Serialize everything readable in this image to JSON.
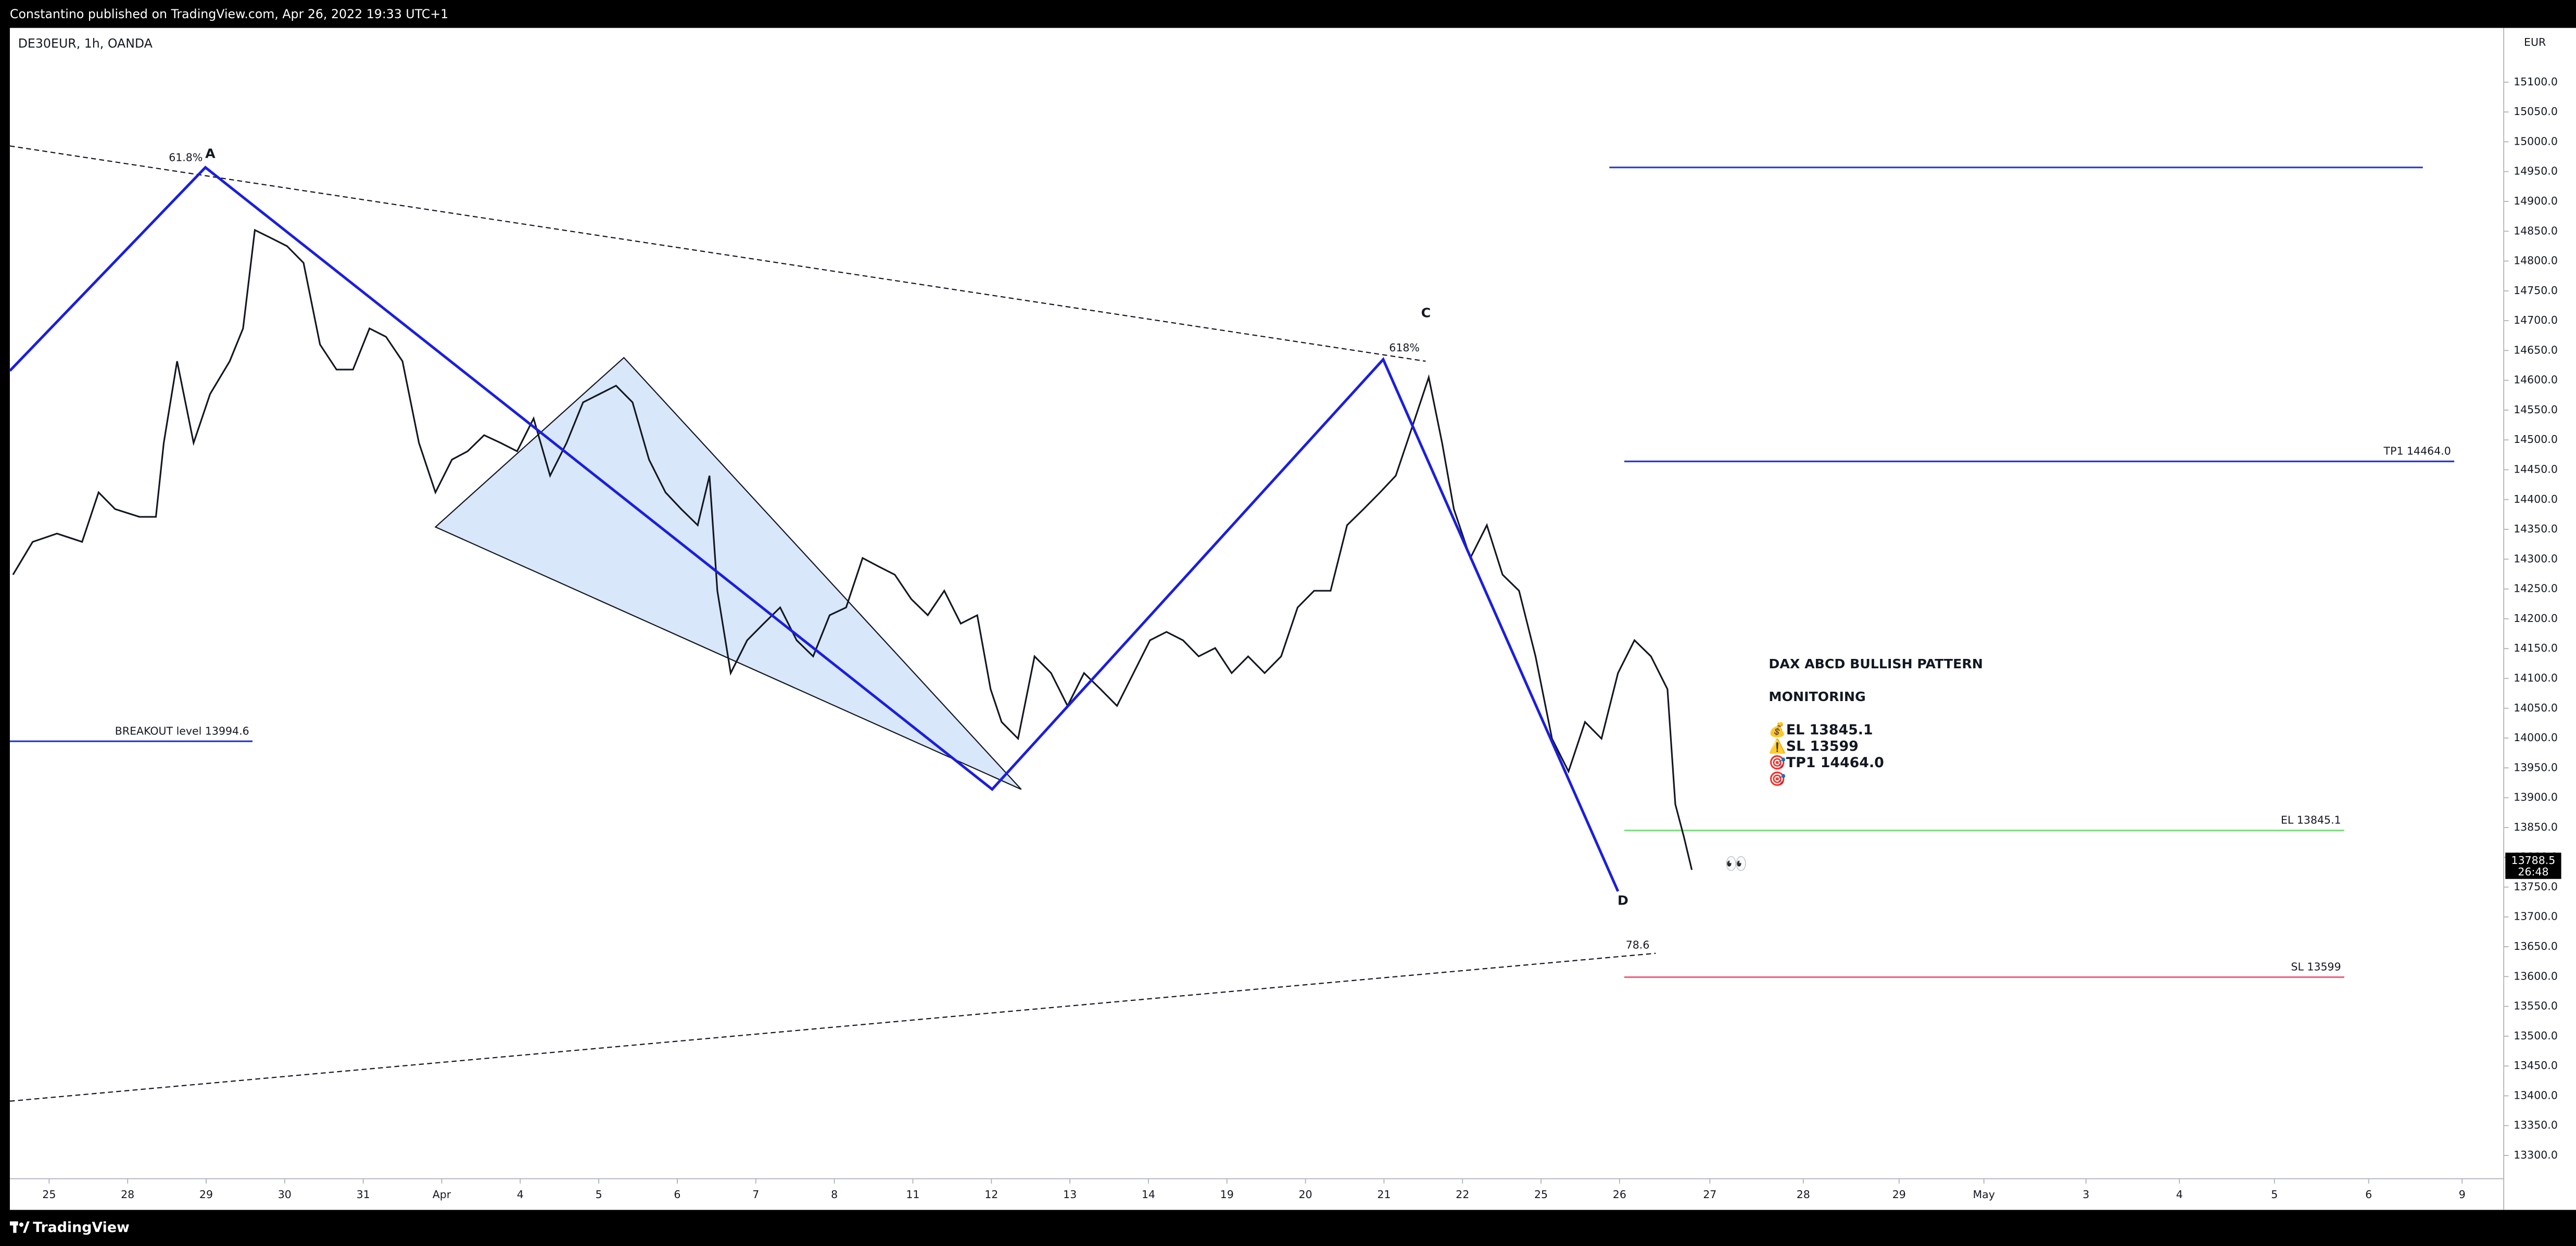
{
  "header": {
    "publisher": "Constantino published on TradingView.com, Apr 26, 2022 19:33 UTC+1",
    "symbol": "DE30EUR, 1h, OANDA",
    "currency": "EUR"
  },
  "footer": {
    "brand": "TradingView"
  },
  "chart_data": {
    "type": "line",
    "color": "#131722",
    "x": [
      -0.46,
      -0.21,
      0.1,
      0.42,
      0.63,
      0.84,
      1.15,
      1.36,
      1.46,
      1.63,
      1.84,
      2.05,
      2.3,
      2.47,
      2.62,
      2.82,
      3.03,
      3.24,
      3.45,
      3.66,
      3.87,
      4.08,
      4.29,
      4.5,
      4.71,
      4.92,
      5.13,
      5.33,
      5.54,
      5.75,
      5.96,
      6.17,
      6.38,
      6.59,
      6.8,
      7.01,
      7.22,
      7.43,
      7.64,
      7.85,
      8.05,
      8.26,
      8.41,
      8.51,
      8.68,
      8.89,
      9.1,
      9.31,
      9.52,
      9.73,
      9.94,
      10.15,
      10.36,
      10.56,
      10.77,
      10.98,
      11.19,
      11.4,
      11.61,
      11.82,
      11.99,
      12.13,
      12.34,
      12.55,
      12.76,
      12.97,
      13.18,
      13.39,
      13.6,
      13.81,
      14.02,
      14.23,
      14.44,
      14.64,
      14.85,
      15.06,
      15.27,
      15.48,
      15.69,
      15.9,
      16.11,
      16.32,
      16.53,
      16.74,
      16.95,
      17.15,
      17.36,
      17.57,
      17.74,
      17.89,
      18.1,
      18.31,
      18.51,
      18.72,
      18.93,
      19.14,
      19.35,
      19.56,
      19.77,
      19.98,
      20.19,
      20.4,
      20.61,
      20.71,
      20.82,
      20.92
    ],
    "values": [
      14274,
      14329,
      14343,
      14329,
      14412,
      14384,
      14371,
      14371,
      14495,
      14632,
      14495,
      14577,
      14632,
      14687,
      14852,
      14839,
      14825,
      14797,
      14660,
      14618,
      14618,
      14687,
      14673,
      14632,
      14495,
      14412,
      14467,
      14481,
      14508,
      14495,
      14481,
      14536,
      14440,
      14495,
      14563,
      14577,
      14591,
      14563,
      14467,
      14412,
      14384,
      14357,
      14440,
      14247,
      14109,
      14164,
      14192,
      14219,
      14164,
      14137,
      14206,
      14219,
      14302,
      14288,
      14274,
      14233,
      14206,
      14247,
      14192,
      14206,
      14082,
      14027,
      13999,
      14137,
      14109,
      14054,
      14109,
      14082,
      14054,
      14109,
      14164,
      14178,
      14164,
      14137,
      14151,
      14109,
      14137,
      14109,
      14137,
      14219,
      14247,
      14247,
      14357,
      14384,
      14412,
      14440,
      14522,
      14605,
      14495,
      14384,
      14302,
      14357,
      14274,
      14247,
      14137,
      13999,
      13944,
      14027,
      13999,
      14109,
      14164,
      14137,
      14082,
      13889,
      13834,
      13779
    ],
    "xlim": [
      -0.5,
      31.26
    ],
    "xticks": [
      {
        "value": 0,
        "label": "25"
      },
      {
        "value": 1,
        "label": "28"
      },
      {
        "value": 2,
        "label": "29"
      },
      {
        "value": 3,
        "label": "30"
      },
      {
        "value": 4,
        "label": "31"
      },
      {
        "value": 5,
        "label": "Apr"
      },
      {
        "value": 6,
        "label": "4"
      },
      {
        "value": 7,
        "label": "5"
      },
      {
        "value": 8,
        "label": "6"
      },
      {
        "value": 9,
        "label": "7"
      },
      {
        "value": 10,
        "label": "8"
      },
      {
        "value": 11,
        "label": "11"
      },
      {
        "value": 12,
        "label": "12"
      },
      {
        "value": 13,
        "label": "13"
      },
      {
        "value": 14,
        "label": "14"
      },
      {
        "value": 15,
        "label": "19"
      },
      {
        "value": 16,
        "label": "20"
      },
      {
        "value": 17,
        "label": "21"
      },
      {
        "value": 18,
        "label": "22"
      },
      {
        "value": 19,
        "label": "25"
      },
      {
        "value": 20,
        "label": "26"
      },
      {
        "value": 21.15,
        "label": "27"
      },
      {
        "value": 22.34,
        "label": "28"
      },
      {
        "value": 23.56,
        "label": "29"
      },
      {
        "value": 24.64,
        "label": "May"
      },
      {
        "value": 25.94,
        "label": "3"
      },
      {
        "value": 27.13,
        "label": "4"
      },
      {
        "value": 28.34,
        "label": "5"
      },
      {
        "value": 29.54,
        "label": "6"
      },
      {
        "value": 30.73,
        "label": "9"
      }
    ],
    "ylim": [
      13261,
      15191
    ],
    "yticks": [
      {
        "value": 13300,
        "label": "13300.0"
      },
      {
        "value": 13350,
        "label": "13350.0"
      },
      {
        "value": 13400,
        "label": "13400.0"
      },
      {
        "value": 13450,
        "label": "13450.0"
      },
      {
        "value": 13500,
        "label": "13500.0"
      },
      {
        "value": 13550,
        "label": "13550.0"
      },
      {
        "value": 13600,
        "label": "13600.0"
      },
      {
        "value": 13650,
        "label": "13650.0"
      },
      {
        "value": 13700,
        "label": "13700.0"
      },
      {
        "value": 13750,
        "label": "13750.0"
      },
      {
        "value": 13800,
        "label": "13800.0"
      },
      {
        "value": 13850,
        "label": "13850.0"
      },
      {
        "value": 13900,
        "label": "13900.0"
      },
      {
        "value": 13950,
        "label": "13950.0"
      },
      {
        "value": 14000,
        "label": "14000.0"
      },
      {
        "value": 14050,
        "label": "14050.0"
      },
      {
        "value": 14100,
        "label": "14100.0"
      },
      {
        "value": 14150,
        "label": "14150.0"
      },
      {
        "value": 14200,
        "label": "14200.0"
      },
      {
        "value": 14250,
        "label": "14250.0"
      },
      {
        "value": 14300,
        "label": "14300.0"
      },
      {
        "value": 14350,
        "label": "14350.0"
      },
      {
        "value": 14400,
        "label": "14400.0"
      },
      {
        "value": 14450,
        "label": "14450.0"
      },
      {
        "value": 14500,
        "label": "14500.0"
      },
      {
        "value": 14550,
        "label": "14550.0"
      },
      {
        "value": 14600,
        "label": "14600.0"
      },
      {
        "value": 14650,
        "label": "14650.0"
      },
      {
        "value": 14700,
        "label": "14700.0"
      },
      {
        "value": 14750,
        "label": "14750.0"
      },
      {
        "value": 14800,
        "label": "14800.0"
      },
      {
        "value": 14850,
        "label": "14850.0"
      },
      {
        "value": 14900,
        "label": "14900.0"
      },
      {
        "value": 14950,
        "label": "14950.0"
      },
      {
        "value": 15000,
        "label": "15000.0"
      },
      {
        "value": 15050,
        "label": "15050.0"
      },
      {
        "value": 15100,
        "label": "15100.0"
      }
    ],
    "last_price": {
      "value": 13788.5,
      "countdown": "26:48"
    },
    "levels": [
      {
        "value": 14957,
        "x_range": [
          19.87,
          30.23
        ],
        "color": "#2a3bd6"
      },
      {
        "value": 14464.0,
        "label": "TP1 14464.0",
        "x_range": [
          20.06,
          30.63
        ],
        "color": "#2a3bd6"
      },
      {
        "value": 13845.1,
        "label": "EL 13845.1",
        "x_range": [
          20.06,
          29.23
        ],
        "color": "#7fe07f"
      },
      {
        "value": 13599,
        "label": "SL 13599",
        "x_range": [
          20.06,
          29.23
        ],
        "color": "#f06080"
      },
      {
        "value": 13994.6,
        "label": "BREAKOUT level  13994.6",
        "x_range": [
          -0.5,
          2.59
        ],
        "color": "#2a3bd6"
      }
    ],
    "pattern": {
      "color": "#1a1ee0",
      "points": [
        {
          "x": -0.5,
          "y": 14616,
          "label": null
        },
        {
          "x": 1.99,
          "y": 14957,
          "label": "A"
        },
        {
          "x": 12.01,
          "y": 13914,
          "label": null
        },
        {
          "x": 16.99,
          "y": 14635,
          "label": "C"
        },
        {
          "x": 19.98,
          "y": 13743,
          "label": "D"
        }
      ]
    },
    "triangle": {
      "x": [
        4.92,
        7.32,
        12.38
      ],
      "y": [
        14354,
        14638,
        13914
      ]
    },
    "dashed_lines": [
      {
        "x": [
          -0.5,
          17.53
        ],
        "y": [
          14993,
          14632
        ]
      },
      {
        "x": [
          -0.5,
          20.46
        ],
        "y": [
          13391,
          13639
        ]
      }
    ],
    "fib_labels": [
      {
        "text": "61.8%",
        "x": 1.74,
        "y": 14973
      },
      {
        "text": "618%",
        "x": 17.26,
        "y": 14654
      },
      {
        "text": "78.6",
        "x": 20.23,
        "y": 13652
      }
    ],
    "note": {
      "x": 21.9,
      "y": 14123,
      "lines": [
        "DAX ABCD BULLISH PATTERN",
        "MONITORING",
        "💰EL 13845.1",
        "⚠️SL 13599",
        "🎯TP1 14464.0",
        "🎯"
      ]
    },
    "emoji": {
      "text": "👀",
      "x": 21.34,
      "y": 13788
    }
  }
}
